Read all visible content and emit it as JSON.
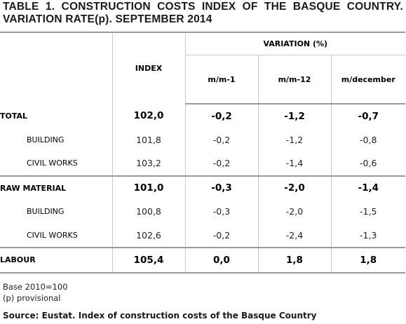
{
  "title": "TABLE 1. CONSTRUCTION COSTS INDEX OF THE BASQUE COUNTRY. VARIATION RATE(p). SEPTEMBER 2014",
  "header": {
    "index": "INDEX",
    "variation": "VARIATION (%)",
    "mm1": "m/m-1",
    "mm12": "m/m-12",
    "mdec": "m/december"
  },
  "rows": [
    {
      "label": "TOTAL",
      "index": "102,0",
      "mm1": "-0,2",
      "mm12": "-1,2",
      "mdec": "-0,7"
    },
    {
      "label": "BUILDING",
      "index": "101,8",
      "mm1": "-0,2",
      "mm12": "-1,2",
      "mdec": "-0,8"
    },
    {
      "label": "CIVIL WORKS",
      "index": "103,2",
      "mm1": "-0,2",
      "mm12": "-1,4",
      "mdec": "-0,6"
    },
    {
      "label": "RAW MATERIAL",
      "index": "101,0",
      "mm1": "-0,3",
      "mm12": "-2,0",
      "mdec": "-1,4"
    },
    {
      "label": "BUILDING",
      "index": "100,8",
      "mm1": "-0,3",
      "mm12": "-2,0",
      "mdec": "-1,5"
    },
    {
      "label": "CIVIL WORKS",
      "index": "102,6",
      "mm1": "-0,2",
      "mm12": "-2,4",
      "mdec": "-1,3"
    },
    {
      "label": "LABOUR",
      "index": "105,4",
      "mm1": "0,0",
      "mm12": "1,8",
      "mdec": "1,8"
    }
  ],
  "notes": {
    "base": "Base 2010=100",
    "provisional": "(p) provisional",
    "source": "Source: Eustat. Index of construction costs of the Basque Country"
  }
}
